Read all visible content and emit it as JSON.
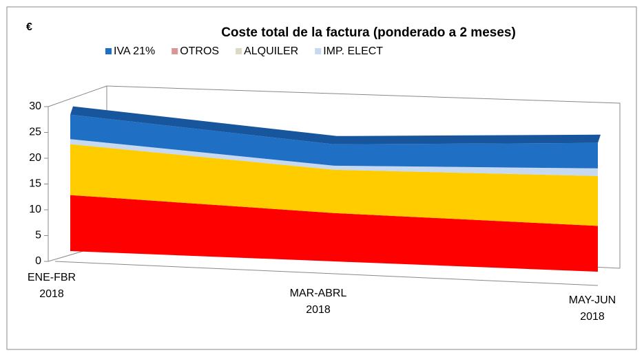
{
  "chart_data": {
    "type": "area3d",
    "title": "Coste total de la factura (ponderado a 2 meses)",
    "y_label": "€",
    "categories": [
      "ENE-FBR\n2018",
      "MAR-ABRL\n2018",
      "MAY-JUN\n2018"
    ],
    "series": [
      {
        "color": "#ff0000",
        "values": [
          11,
          9.5,
          9
        ]
      },
      {
        "color": "#ffcc00",
        "values": [
          10,
          8.5,
          9.8
        ]
      },
      {
        "name": "IMP. ELECT",
        "color": "#c6d9f1",
        "values": [
          1,
          0.8,
          1.5
        ]
      },
      {
        "name": "ALQUILER",
        "color": "#ddd9c3",
        "values": [
          0,
          0,
          0
        ]
      },
      {
        "name": "OTROS",
        "color": "#d99694",
        "values": [
          0,
          0,
          0
        ]
      },
      {
        "name": "IVA 21%",
        "color": "#1f6fc5",
        "values": [
          4.8,
          4.2,
          5
        ]
      }
    ],
    "ylim": [
      0,
      30
    ],
    "yticks": [
      0,
      5,
      10,
      15,
      20,
      25,
      30
    ],
    "stacked": true
  }
}
